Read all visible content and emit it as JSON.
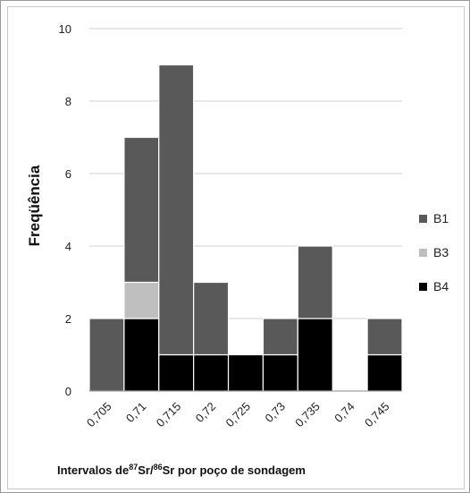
{
  "chart_data": {
    "type": "bar",
    "stacked": true,
    "categories": [
      "0,705",
      "0,71",
      "0,715",
      "0,72",
      "0,725",
      "0,73",
      "0,735",
      "0,74",
      "0,745"
    ],
    "series": [
      {
        "name": "B4",
        "color": "#000000",
        "values": [
          0,
          2,
          1,
          1,
          1,
          1,
          2,
          0,
          1
        ]
      },
      {
        "name": "B3",
        "color": "#bfbfbf",
        "values": [
          0,
          1,
          0,
          0,
          0,
          0,
          0,
          0,
          0
        ]
      },
      {
        "name": "B1",
        "color": "#595959",
        "values": [
          2,
          4,
          8,
          2,
          0,
          1,
          2,
          0,
          1
        ]
      }
    ],
    "legend_order": [
      "B1",
      "B3",
      "B4"
    ],
    "ylabel": "Freqüência",
    "xlabel": {
      "prefix": "Intervalos de",
      "sup1": "87",
      "mid": "Sr/",
      "sup2": "86",
      "suffix": "Sr por poço de sondagem"
    },
    "ylim": [
      0,
      10
    ],
    "yticks": [
      "0",
      "2",
      "4",
      "6",
      "8",
      "10"
    ],
    "grid": true,
    "legend_position": "right"
  }
}
